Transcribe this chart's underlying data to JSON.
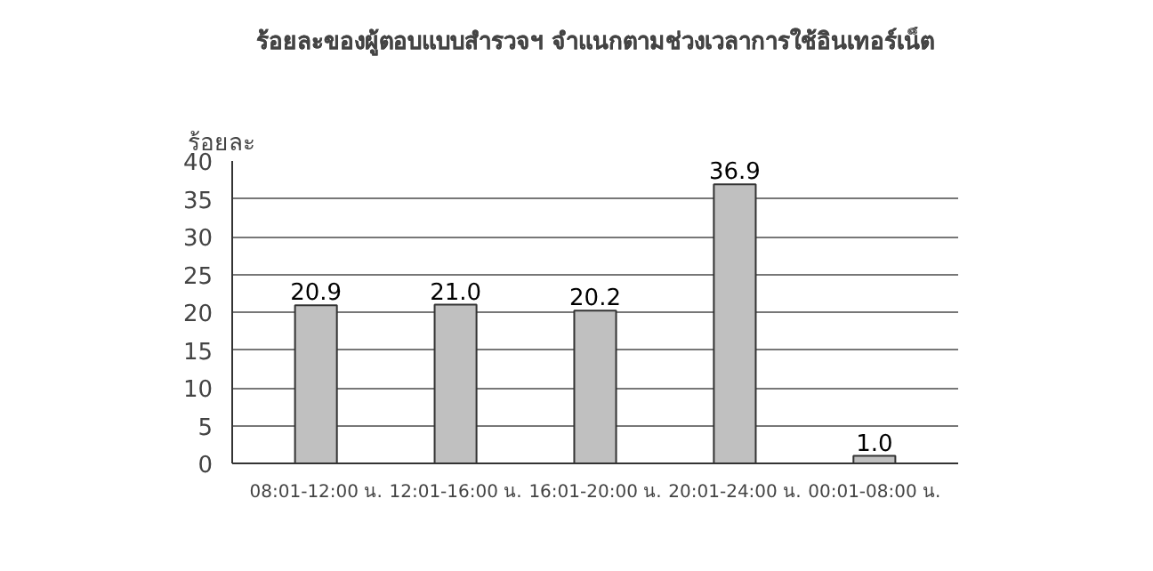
{
  "chart_data": {
    "type": "bar",
    "title": "ร้อยละของผู้ตอบแบบสำรวจฯ จำแนกตามช่วงเวลาการใช้อินเทอร์เน็ต",
    "ylabel": "ร้อยละ",
    "categories": [
      "08:01-12:00 น.",
      "12:01-16:00 น.",
      "16:01-20:00 น.",
      "20:01-24:00 น.",
      "00:01-08:00 น."
    ],
    "values": [
      20.9,
      21.0,
      20.2,
      36.9,
      1.0
    ],
    "value_labels": [
      "20.9",
      "21.0",
      "20.2",
      "36.9",
      "1.0"
    ],
    "color": "#c0c0c0",
    "ylim": [
      0,
      40
    ],
    "yticks": [
      0,
      5,
      10,
      15,
      20,
      25,
      30,
      35,
      40
    ],
    "grid": "y"
  }
}
